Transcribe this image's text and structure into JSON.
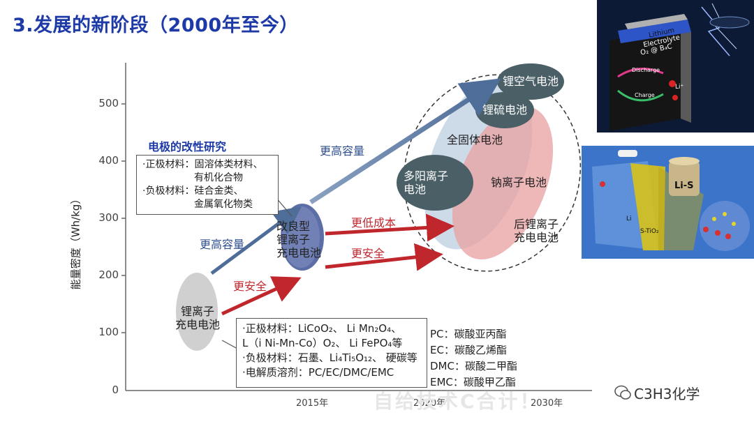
{
  "title": "3.发展的新阶段（2000年至今）",
  "y_axis": {
    "label": "能量密度（Wh/kg）",
    "ticks": [
      "500",
      "400",
      "300",
      "200",
      "100",
      "0"
    ]
  },
  "x_axis": {
    "ticks": [
      "2015年",
      "2020年",
      "2030年"
    ]
  },
  "modification_box": {
    "heading": "电极的改性研究",
    "lines": [
      "·正极材料：固溶体类材料、",
      "有机化合物",
      "·负极材料：硅合金类、",
      "金属氧化物类"
    ]
  },
  "materials_box": {
    "lines": [
      "·正极材料：LiCoO₂、 Li Mn₂O₄、",
      "L（i Ni-Mn-Co）O₂、 Li FePO₄等",
      "·负极材料：石墨、Li₄Ti₅O₁₂、 硬碳等",
      "·电解质溶剂：PC/EC/DMC/EMC"
    ]
  },
  "solvents": [
    "PC：碳酸亚丙酯",
    "EC：碳酸乙烯酯",
    "DMC：碳酸二甲酯",
    "EMC：碳酸甲乙酯"
  ],
  "bubbles": {
    "li_ion": "锂离子\n充电电池",
    "improved": "改良型\n锂离子\n充电电池",
    "li_air": "锂空气电池",
    "li_s": "锂硫电池",
    "solid_state": "全固体电池",
    "multivalent": "多阳离子\n电池",
    "sodium": "钠离子电池",
    "post_li": "后锂离子\n充电电池"
  },
  "arrows": {
    "capacity_1": "更高容量",
    "capacity_2": "更高容量",
    "safety_1": "更安全",
    "safety_2": "更安全",
    "lower_cost": "更低成本"
  },
  "image_top": {
    "labels": [
      "Lithium",
      "Electrolyte",
      "O₂ @ B₄C",
      "Li⁺",
      "Discharge",
      "Charge"
    ]
  },
  "image_bottom": {
    "labels": [
      "Li-S",
      "Li",
      "S-TiO₂"
    ]
  },
  "ghost_text": "自给技术C合计！",
  "watermark": "C3H3化学",
  "colors": {
    "title": "#1d3aa6",
    "arrow_blue": "#4f6d99",
    "arrow_red": "#c0272d",
    "bubble_dark": "#4a5f66",
    "bubble_red": "#e8a0a0",
    "bubble_blue": "#c8d6e6"
  }
}
